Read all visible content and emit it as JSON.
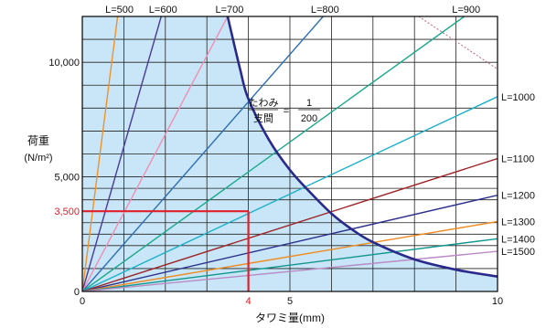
{
  "chart_data": {
    "type": "line",
    "xlabel": "タワミ量(mm)",
    "ylabel_main": "荷重",
    "ylabel_unit": "(N/m²)",
    "xlim": [
      0,
      10
    ],
    "ylim": [
      0,
      12000
    ],
    "grid": true,
    "x_ticks": [
      {
        "value": 0,
        "label": "0"
      },
      {
        "value": 5,
        "label": "5"
      },
      {
        "value": 10,
        "label": "10"
      }
    ],
    "y_ticks": [
      {
        "value": 0,
        "label": "0"
      },
      {
        "value": 5000,
        "label": "5,000"
      },
      {
        "value": 10000,
        "label": "10,000"
      }
    ],
    "highlight": {
      "x": 4,
      "y": 3500,
      "x_label": "4",
      "y_label": "3,500",
      "color": "#e0202a"
    },
    "deflection_limit": {
      "caption_left_top": "たわみ",
      "caption_left_bottom": "支間",
      "equals": "=",
      "numerator": "1",
      "denominator": "200",
      "color": "#2a2a8c",
      "points": [
        {
          "x": 3.5,
          "y": 12000
        },
        {
          "x": 3.8,
          "y": 9700
        },
        {
          "x": 4.0,
          "y": 8400
        },
        {
          "x": 4.5,
          "y": 6600
        },
        {
          "x": 5.0,
          "y": 5300
        },
        {
          "x": 5.5,
          "y": 4300
        },
        {
          "x": 6.0,
          "y": 3400
        },
        {
          "x": 6.5,
          "y": 2700
        },
        {
          "x": 7.0,
          "y": 2150
        },
        {
          "x": 8.0,
          "y": 1400
        },
        {
          "x": 9.0,
          "y": 950
        },
        {
          "x": 10.0,
          "y": 650
        }
      ]
    },
    "series": [
      {
        "name": "L=500",
        "color": "#f0922a",
        "end": {
          "x": 0.85,
          "y": 12000
        }
      },
      {
        "name": "L=600",
        "color": "#4b3a9a",
        "end": {
          "x": 1.9,
          "y": 12000
        }
      },
      {
        "name": "L=700",
        "color": "#ef8fb4",
        "end": {
          "x": 3.5,
          "y": 12000
        }
      },
      {
        "name": "L=800",
        "color": "#2d6fb5",
        "end": {
          "x": 5.8,
          "y": 12000
        }
      },
      {
        "name": "L=900",
        "color": "#1aa88a",
        "end": {
          "x": 9.2,
          "y": 12000
        }
      },
      {
        "name": "L=1000",
        "color": "#1ab0c9",
        "end": {
          "x": 10.0,
          "y": 8500
        }
      },
      {
        "name": "L=1100",
        "color": "#9e2326",
        "end": {
          "x": 10.0,
          "y": 5800
        }
      },
      {
        "name": "L=1200",
        "color": "#2b2f8a",
        "end": {
          "x": 10.0,
          "y": 4200
        }
      },
      {
        "name": "L=1300",
        "color": "#f08a1e",
        "end": {
          "x": 10.0,
          "y": 3050
        }
      },
      {
        "name": "L=1400",
        "color": "#10968c",
        "end": {
          "x": 10.0,
          "y": 2300
        }
      },
      {
        "name": "L=1500",
        "color": "#b98ac4",
        "end": {
          "x": 10.0,
          "y": 1750
        }
      }
    ],
    "extra_line": {
      "color": "#c0608a",
      "points": [
        {
          "x": 8.1,
          "y": 12000
        },
        {
          "x": 10.0,
          "y": 9700
        }
      ]
    },
    "fill_color": "#c8e6f7"
  }
}
